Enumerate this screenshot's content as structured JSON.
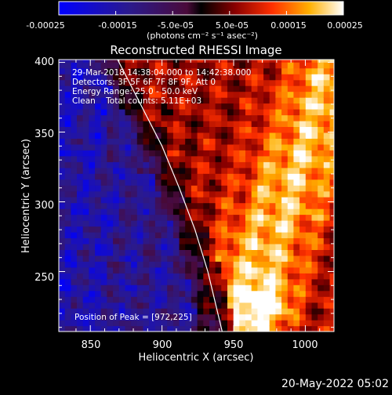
{
  "colorbar": {
    "tick_labels": [
      "-0.00025",
      "-0.00015",
      "-5.0e-05",
      "5.0e-05",
      "0.00015",
      "0.00025"
    ],
    "min": -0.00025,
    "max": 0.00025,
    "units_text": "(photons cm⁻² s⁻¹ asec⁻²)"
  },
  "chart_data": {
    "type": "heatmap",
    "title": "Reconstructed RHESSI Image",
    "xlabel": "Heliocentric X (arcsec)",
    "ylabel": "Heliocentric Y (arcsec)",
    "xlim": [
      828,
      1020
    ],
    "ylim": [
      207,
      402
    ],
    "x_ticks": [
      850,
      900,
      950,
      1000
    ],
    "y_ticks": [
      250,
      300,
      350,
      400
    ],
    "x_tick_labels": [
      "850",
      "900",
      "950",
      "1000"
    ],
    "y_tick_labels": [
      "250",
      "300",
      "350",
      "400"
    ],
    "annotations": [
      "29-Mar-2018 14:38:04.000 to 14:42:38.000",
      "Detectors: 3F 5F 6F 7F 8F 9F, Att 0",
      "Energy Range: 25.0 - 50.0 keV",
      "Clean    Total counts: 5.11E+03"
    ],
    "peak_label": "Position of Peak = [972,225]",
    "peak_position": [
      972,
      225
    ],
    "limb_curve": [
      [
        869,
        402
      ],
      [
        885,
        370
      ],
      [
        900,
        340
      ],
      [
        912,
        310
      ],
      [
        923,
        280
      ],
      [
        932,
        250
      ],
      [
        942,
        207
      ]
    ],
    "colormap": "blue-purple-red-yellow-white"
  },
  "timestamp": "20-May-2022 05:02"
}
